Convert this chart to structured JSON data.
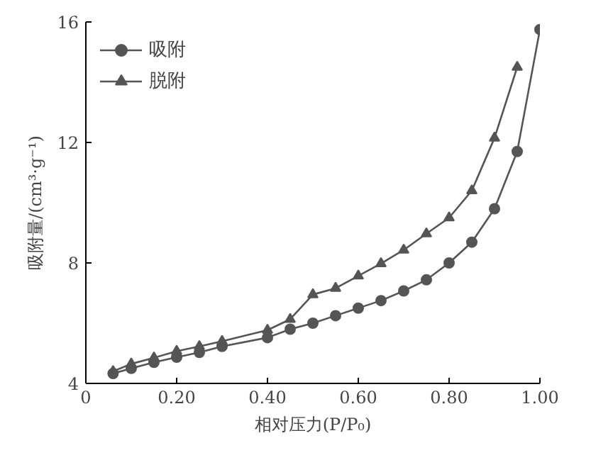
{
  "chart_data": {
    "type": "line",
    "xlabel": "相对压力(P/P₀)",
    "ylabel": "吸附量/(cm³·g⁻¹)",
    "xlim": [
      0,
      1.0
    ],
    "ylim": [
      4,
      16
    ],
    "xticks": [
      0,
      {
        "value": 0.2,
        "label": "0.20"
      },
      {
        "value": 0.4,
        "label": "0.40"
      },
      {
        "value": 0.6,
        "label": "0.60"
      },
      {
        "value": 0.8,
        "label": "0.80"
      },
      {
        "value": 1.0,
        "label": "1.00"
      }
    ],
    "yticks": [
      4,
      8,
      12,
      16
    ],
    "grid": false,
    "legend": "top left",
    "line_style": "solid",
    "series": [
      {
        "name": "吸附",
        "color": "#555555",
        "marker": "circle",
        "x": [
          0.06,
          0.1,
          0.15,
          0.2,
          0.25,
          0.3,
          0.4,
          0.45,
          0.5,
          0.55,
          0.6,
          0.65,
          0.7,
          0.75,
          0.8,
          0.85,
          0.9,
          0.95,
          1.0
        ],
        "values": [
          4.33,
          4.5,
          4.7,
          4.87,
          5.03,
          5.23,
          5.52,
          5.8,
          6.0,
          6.25,
          6.5,
          6.75,
          7.07,
          7.44,
          8.0,
          8.69,
          9.8,
          11.7,
          15.75
        ]
      },
      {
        "name": "脱附",
        "color": "#555555",
        "marker": "triangle",
        "x": [
          0.06,
          0.1,
          0.15,
          0.2,
          0.25,
          0.3,
          0.4,
          0.45,
          0.5,
          0.55,
          0.6,
          0.65,
          0.7,
          0.75,
          0.8,
          0.85,
          0.9,
          0.95
        ],
        "values": [
          4.4,
          4.65,
          4.85,
          5.07,
          5.23,
          5.4,
          5.77,
          6.13,
          6.95,
          7.16,
          7.57,
          7.98,
          8.43,
          8.97,
          9.5,
          10.4,
          12.15,
          14.5
        ]
      }
    ]
  }
}
